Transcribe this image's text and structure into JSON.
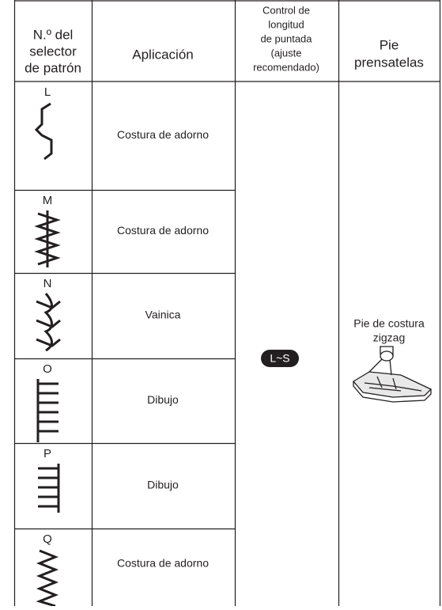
{
  "header": {
    "columns": [
      {
        "lines": [
          "N.º del",
          "selector",
          "de patrón"
        ]
      },
      {
        "lines": [
          "Aplicación"
        ]
      },
      {
        "lines": [
          "Control de",
          "longitud",
          "de puntada",
          "(ajuste",
          "recomendado)"
        ]
      },
      {
        "lines": [
          "Pie",
          "prensatelas"
        ]
      }
    ]
  },
  "rows": [
    {
      "pattern": "L",
      "application": "Costura de adorno"
    },
    {
      "pattern": "M",
      "application": "Costura de adorno"
    },
    {
      "pattern": "N",
      "application": "Vainica"
    },
    {
      "pattern": "O",
      "application": "Dibujo"
    },
    {
      "pattern": "P",
      "application": "Dibujo"
    },
    {
      "pattern": "Q",
      "application": "Costura de adorno"
    }
  ],
  "stitch_length": "L~S",
  "presser_foot": {
    "lines": [
      "Pie de costura",
      "zigzag"
    ]
  }
}
